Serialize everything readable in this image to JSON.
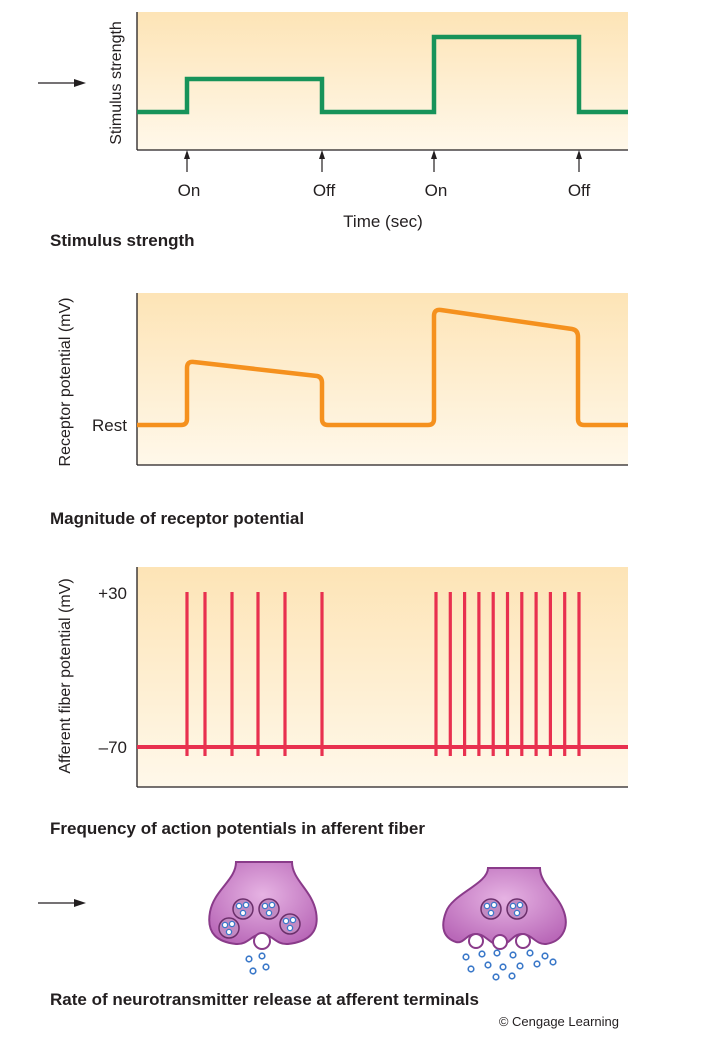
{
  "panels": {
    "stimulus": {
      "ylabel": "Stimulus strength",
      "events": [
        "On",
        "Off",
        "On",
        "Off"
      ],
      "xlabel": "Time (sec)",
      "caption": "Stimulus strength"
    },
    "receptor": {
      "ylabel": "Receptor potential (mV)",
      "rest_label": "Rest",
      "caption": "Magnitude of receptor potential"
    },
    "afferent": {
      "ylabel": "Afferent fiber potential (mV)",
      "ytick_top": "+30",
      "ytick_bottom": "–70",
      "caption": "Frequency of action potentials in afferent fiber"
    },
    "terminals": {
      "caption": "Rate of neurotransmitter release at afferent terminals"
    }
  },
  "credit": "© Cengage Learning",
  "colors": {
    "stimulus": "#17935a",
    "receptor": "#f5911e",
    "spike": "#e8304f",
    "panel_top": "#fde4b6",
    "panel_bottom": "#fff8ea",
    "terminal": "#b968b8",
    "vesicle": "#3a78c9"
  },
  "chart_data": [
    {
      "type": "line",
      "name": "stimulus",
      "ylabel": "Stimulus strength",
      "xlabel": "Time (sec)",
      "x_events": [
        "On",
        "Off",
        "On",
        "Off"
      ],
      "levels": {
        "baseline": 1,
        "weak": 2,
        "strong": 3
      }
    },
    {
      "type": "line",
      "name": "receptor",
      "ylabel": "Receptor potential (mV)",
      "ytick": "Rest"
    },
    {
      "type": "spike_train",
      "name": "afferent",
      "ylabel": "Afferent fiber potential (mV)",
      "yticks": [
        "+30",
        "–70"
      ],
      "spikes_weak": 6,
      "spikes_strong": 11
    }
  ]
}
